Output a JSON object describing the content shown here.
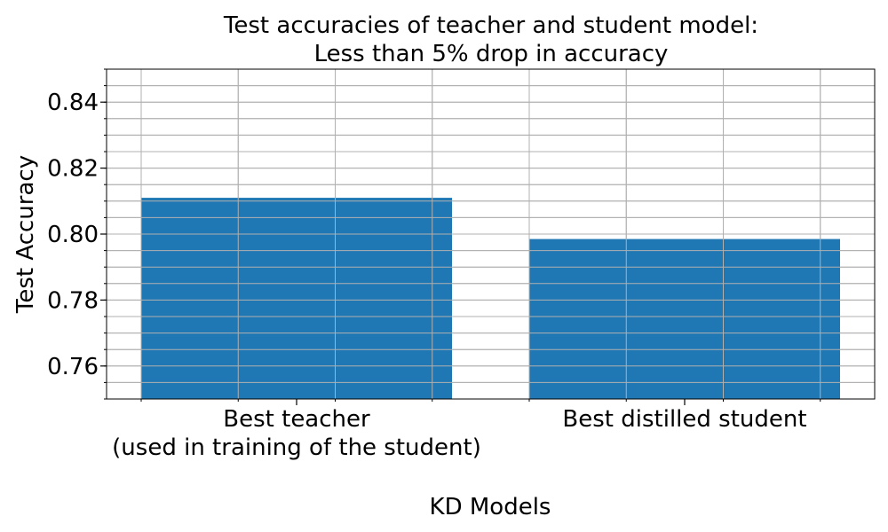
{
  "chart_data": {
    "type": "bar",
    "title_lines": [
      "Test accuracies of teacher and student model:",
      "Less than 5% drop in accuracy"
    ],
    "xlabel": "KD Models",
    "ylabel": "Test Accuracy",
    "categories": [
      [
        "Best teacher",
        "(used in training of the student)"
      ],
      [
        "Best distilled student"
      ]
    ],
    "values": [
      0.811,
      0.7985
    ],
    "ylim": [
      0.75,
      0.85
    ],
    "yticks": [
      0.76,
      0.78,
      0.8,
      0.82,
      0.84
    ],
    "ytick_labels": [
      "0.76",
      "0.78",
      "0.80",
      "0.82",
      "0.84"
    ],
    "y_minor_step": 0.005,
    "x_minor_fraction": 0.25,
    "grid": true,
    "grid_minor": true,
    "bar_color": "#1f77b4",
    "grid_color": "#b0b0b0"
  }
}
